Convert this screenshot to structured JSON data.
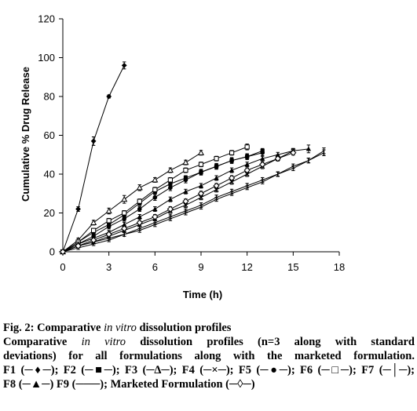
{
  "chart_data": {
    "type": "line",
    "title": "",
    "xlabel": "Time (h)",
    "ylabel": "Cumulative % Drug Release",
    "xlim": [
      0,
      18
    ],
    "ylim": [
      0,
      120
    ],
    "x_ticks": [
      "0",
      "3",
      "6",
      "9",
      "12",
      "15",
      "18"
    ],
    "y_ticks": [
      "0",
      "20",
      "40",
      "60",
      "80",
      "100",
      "120"
    ],
    "grid": false,
    "series": [
      {
        "x": [
          0,
          1,
          2,
          3,
          4
        ],
        "values": [
          0,
          22,
          57,
          80,
          96
        ],
        "marker": "filled-diamond",
        "errors": [
          0,
          1.2,
          2.2,
          0.8,
          1.8
        ]
      },
      {
        "x": [
          0,
          1,
          2,
          3,
          4,
          5,
          6,
          7,
          8,
          9,
          10,
          11,
          12,
          13
        ],
        "values": [
          0,
          5,
          10,
          14,
          19,
          25,
          31,
          35,
          38,
          41,
          44,
          47,
          49,
          52
        ],
        "marker": "filled-square",
        "errors": [
          0,
          1,
          1,
          1,
          1.2,
          1.2,
          1.2,
          1.2,
          1.2,
          1.2,
          1.2,
          1.2,
          1.2,
          1.2
        ]
      },
      {
        "x": [
          0,
          1,
          2,
          3,
          4,
          5,
          6,
          7,
          8,
          9
        ],
        "values": [
          0,
          6,
          15,
          21,
          27,
          33,
          37,
          42,
          46,
          51
        ],
        "marker": "open-triangle",
        "errors": [
          0,
          1,
          1.2,
          1.5,
          2,
          1.5,
          1.2,
          1.2,
          1.2,
          1.2
        ]
      },
      {
        "x": [
          0,
          1,
          2,
          3,
          4,
          5,
          6,
          7,
          8,
          9,
          10,
          11,
          12,
          13,
          14,
          15
        ],
        "values": [
          0,
          3,
          5,
          8,
          11,
          14,
          17,
          21,
          24,
          28,
          32,
          36,
          40,
          44,
          48,
          52
        ],
        "marker": "cross",
        "errors": [
          0,
          0.8,
          0.8,
          1,
          1,
          1,
          1,
          1.2,
          1.2,
          1.2,
          1.2,
          1.2,
          1.2,
          1.2,
          1.2,
          1.2
        ]
      },
      {
        "x": [
          0,
          1,
          2,
          3,
          4,
          5,
          6,
          7,
          8,
          9,
          10,
          11,
          12,
          13
        ],
        "values": [
          0,
          4,
          8,
          13,
          17,
          22,
          28,
          33,
          37,
          41,
          44,
          47,
          49,
          51
        ],
        "marker": "filled-circle",
        "errors": [
          0,
          1,
          1,
          1.2,
          1.2,
          1.2,
          1.5,
          1.5,
          1.5,
          1.5,
          1.5,
          1.5,
          1.5,
          1.5
        ]
      },
      {
        "x": [
          0,
          1,
          2,
          3,
          4,
          5,
          6,
          7,
          8,
          9,
          10,
          11,
          12
        ],
        "values": [
          0,
          5,
          11,
          16,
          20,
          26,
          32,
          37,
          42,
          45,
          48,
          51,
          54
        ],
        "marker": "open-square",
        "errors": [
          0,
          1,
          1,
          1.2,
          1.2,
          1.2,
          1.2,
          1.2,
          1.2,
          1.2,
          1.2,
          1.2,
          1.5
        ]
      },
      {
        "x": [
          0,
          1,
          2,
          3,
          4,
          5,
          6,
          7,
          8,
          9,
          10,
          11,
          12,
          13,
          14,
          15,
          16,
          17
        ],
        "values": [
          0,
          3,
          5,
          7,
          9,
          12,
          15,
          18,
          21,
          24,
          28,
          31,
          34,
          37,
          40,
          44,
          47,
          51
        ],
        "marker": "vertical-bar",
        "errors": [
          0,
          0.8,
          0.8,
          1,
          1,
          1,
          1,
          1,
          1,
          1.2,
          1.2,
          1.2,
          1.2,
          1.2,
          1.2,
          1.2,
          1.2,
          1.5
        ]
      },
      {
        "x": [
          0,
          1,
          2,
          3,
          4,
          5,
          6,
          7,
          8,
          9,
          10,
          11,
          12,
          13,
          14,
          15,
          16
        ],
        "values": [
          0,
          4,
          7,
          10,
          14,
          18,
          22,
          27,
          31,
          34,
          38,
          42,
          45,
          48,
          50,
          52,
          53
        ],
        "marker": "filled-triangle",
        "errors": [
          0,
          1,
          1,
          1,
          1.2,
          1.2,
          1.2,
          1.2,
          1.2,
          1.2,
          1.2,
          1.2,
          1.2,
          1.2,
          1.2,
          1.2,
          2
        ]
      },
      {
        "x": [
          0,
          1,
          2,
          3,
          4,
          5,
          6,
          7,
          8,
          9,
          10,
          11,
          12,
          13,
          14,
          15,
          16,
          17
        ],
        "values": [
          0,
          2,
          4,
          6,
          9,
          11,
          14,
          17,
          20,
          23,
          27,
          30,
          33,
          36,
          40,
          43,
          47,
          52
        ],
        "marker": "none",
        "errors": [
          0,
          0.8,
          0.8,
          0.8,
          1,
          1,
          1,
          1,
          1,
          1,
          1,
          1,
          1,
          1,
          1,
          1.2,
          1.2,
          1.5
        ]
      },
      {
        "x": [
          0,
          1,
          2,
          3,
          4,
          5,
          6,
          7,
          8,
          9,
          10,
          11,
          12,
          13,
          14,
          15
        ],
        "values": [
          0,
          3,
          6,
          9,
          12,
          15,
          18,
          22,
          26,
          30,
          34,
          38,
          42,
          45,
          48,
          51
        ],
        "marker": "open-diamond",
        "errors": [
          0,
          1,
          1,
          1,
          1,
          1,
          1.2,
          1.2,
          1.2,
          1.2,
          1.2,
          1.2,
          1.2,
          1.2,
          1.2,
          1.2
        ]
      }
    ]
  },
  "caption": {
    "fig_label": "Fig. 2: Comparative ",
    "fig_label_italic": "in vitro",
    "fig_label_tail": " dissolution profiles",
    "line1_a": "Comparative ",
    "line1_italic": "in vitro",
    "line1_b": " dissolution profiles (n=3 along with standard",
    "line2": "deviations) for all formulations along with the marketed formulation.",
    "line3": "F1 (─♦─); F2 (─■─); F3 (─∆─); F4 (─×─); F5 (─●─); F6 (─□─); F7 (─│─);",
    "line4": "F8 (─▲─) F9 (───); Marketed Formulation (─◊─)"
  }
}
